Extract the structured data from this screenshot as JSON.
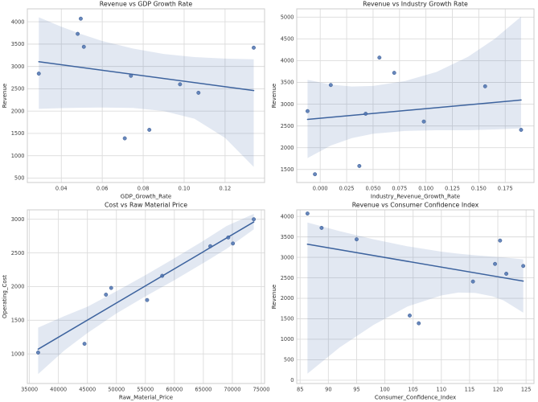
{
  "figure": {
    "background": "#ffffff",
    "style": {
      "point_color": "#4c72b0",
      "point_edge_color": "#3a5a8f",
      "line_color": "#3d639e",
      "band_color": "#4c72b0",
      "band_opacity": 0.16,
      "grid_color": "#dcdcdc",
      "spine_color": "#cccccc",
      "text_color": "#262626"
    }
  },
  "chart_data": [
    {
      "id": "revenue-vs-gdp-growth-rate",
      "type": "scatter",
      "title": "Revenue vs GDP Growth Rate",
      "xlabel": "GDP_Growth_Rate",
      "ylabel": "Revenue",
      "grid": true,
      "legend": "none",
      "xlim": [
        0.0234,
        0.1393
      ],
      "ylim": [
        400,
        4290
      ],
      "xticks": {
        "values": [
          0.04,
          0.06,
          0.08,
          0.1,
          0.12
        ],
        "labels": [
          "0.04",
          "0.06",
          "0.08",
          "0.10",
          "0.12"
        ]
      },
      "yticks": {
        "values": [
          500,
          1000,
          1500,
          2000,
          2500,
          3000,
          3500,
          4000
        ],
        "labels": [
          "500",
          "1000",
          "1500",
          "2000",
          "2500",
          "3000",
          "3500",
          "4000"
        ]
      },
      "points": [
        [
          0.029,
          2840
        ],
        [
          0.048,
          3730
        ],
        [
          0.0495,
          4070
        ],
        [
          0.051,
          3440
        ],
        [
          0.071,
          1390
        ],
        [
          0.074,
          2790
        ],
        [
          0.083,
          1580
        ],
        [
          0.098,
          2600
        ],
        [
          0.107,
          2410
        ],
        [
          0.134,
          3420
        ]
      ],
      "regression_line": {
        "x": [
          0.029,
          0.134
        ],
        "y": [
          3105,
          2460
        ]
      },
      "ci_band": {
        "x": [
          0.029,
          0.04,
          0.05,
          0.06,
          0.075,
          0.09,
          0.105,
          0.12,
          0.134
        ],
        "upper": [
          4100,
          3890,
          3720,
          3570,
          3400,
          3280,
          3210,
          3175,
          3160
        ],
        "lower": [
          2050,
          2065,
          2075,
          2080,
          2070,
          2000,
          1830,
          1400,
          750
        ]
      }
    },
    {
      "id": "revenue-vs-industry-growth-rate",
      "type": "scatter",
      "title": "Revenue vs Industry Growth Rate",
      "xlabel": "Industry_Revenue_Growth_Rate",
      "ylabel": "Revenue",
      "grid": true,
      "legend": "none",
      "xlim": [
        -0.0222,
        0.2022
      ],
      "ylim": [
        1200,
        5190
      ],
      "xticks": {
        "values": [
          0.0,
          0.025,
          0.05,
          0.075,
          0.1,
          0.125,
          0.15,
          0.175
        ],
        "labels": [
          "0.000",
          "0.025",
          "0.050",
          "0.075",
          "0.100",
          "0.125",
          "0.150",
          "0.175"
        ]
      },
      "yticks": {
        "values": [
          1500,
          2000,
          2500,
          3000,
          3500,
          4000,
          4500,
          5000
        ],
        "labels": [
          "1500",
          "2000",
          "2500",
          "3000",
          "3500",
          "4000",
          "4500",
          "5000"
        ]
      },
      "points": [
        [
          -0.012,
          2840
        ],
        [
          -0.005,
          1390
        ],
        [
          0.01,
          3440
        ],
        [
          0.037,
          1580
        ],
        [
          0.043,
          2780
        ],
        [
          0.056,
          4070
        ],
        [
          0.07,
          3720
        ],
        [
          0.098,
          2600
        ],
        [
          0.156,
          3410
        ],
        [
          0.19,
          2410
        ]
      ],
      "regression_line": {
        "x": [
          -0.012,
          0.19
        ],
        "y": [
          2650,
          3095
        ]
      },
      "ci_band": {
        "x": [
          -0.012,
          0.01,
          0.03,
          0.05,
          0.08,
          0.11,
          0.14,
          0.165,
          0.19
        ],
        "upper": [
          3560,
          3450,
          3405,
          3420,
          3530,
          3740,
          4090,
          4500,
          5010
        ],
        "lower": [
          1760,
          2050,
          2220,
          2320,
          2385,
          2400,
          2400,
          2420,
          2445
        ]
      }
    },
    {
      "id": "cost-vs-raw-material-price",
      "type": "scatter",
      "title": "Cost vs Raw Material Price",
      "xlabel": "Raw_Material_Price",
      "ylabel": "Operating_Cost",
      "grid": true,
      "legend": "none",
      "xlim": [
        34640,
        75560
      ],
      "ylim": [
        560,
        3140
      ],
      "xticks": {
        "values": [
          35000,
          40000,
          45000,
          50000,
          55000,
          60000,
          65000,
          70000,
          75000
        ],
        "labels": [
          "35000",
          "40000",
          "45000",
          "50000",
          "55000",
          "60000",
          "65000",
          "70000",
          "75000"
        ]
      },
      "yticks": {
        "values": [
          1000,
          1500,
          2000,
          2500,
          3000
        ],
        "labels": [
          "1000",
          "1500",
          "2000",
          "2500",
          "3000"
        ]
      },
      "points": [
        [
          36500,
          1020
        ],
        [
          44500,
          1150
        ],
        [
          48200,
          1880
        ],
        [
          49100,
          1980
        ],
        [
          55300,
          1800
        ],
        [
          57900,
          2160
        ],
        [
          66200,
          2600
        ],
        [
          69300,
          2730
        ],
        [
          70100,
          2640
        ],
        [
          73700,
          3000
        ]
      ],
      "regression_line": {
        "x": [
          36500,
          73700
        ],
        "y": [
          1070,
          2960
        ]
      },
      "ci_band": {
        "x": [
          36500,
          41000,
          45000,
          50000,
          55000,
          60000,
          65000,
          69000,
          73700
        ],
        "upper": [
          1390,
          1560,
          1700,
          1930,
          2170,
          2420,
          2680,
          2900,
          3080
        ],
        "lower": [
          700,
          1050,
          1310,
          1600,
          1855,
          2095,
          2350,
          2560,
          2850
        ]
      }
    },
    {
      "id": "revenue-vs-consumer-confidence-index",
      "type": "scatter",
      "title": "Revenue vs Consumer Confidence Index",
      "xlabel": "Consumer_Confidence_Index",
      "ylabel": "Revenue",
      "grid": true,
      "legend": "none",
      "xlim": [
        84.4,
        126.4
      ],
      "ylim": [
        -80,
        4160
      ],
      "xticks": {
        "values": [
          85,
          90,
          95,
          100,
          105,
          110,
          115,
          120,
          125
        ],
        "labels": [
          "85",
          "90",
          "95",
          "100",
          "105",
          "110",
          "115",
          "120",
          "125"
        ]
      },
      "yticks": {
        "values": [
          0,
          500,
          1000,
          1500,
          2000,
          2500,
          3000,
          3500,
          4000
        ],
        "labels": [
          "0",
          "500",
          "1000",
          "1500",
          "2000",
          "2500",
          "3000",
          "3500",
          "4000"
        ]
      },
      "points": [
        [
          86.3,
          4070
        ],
        [
          88.8,
          3720
        ],
        [
          95,
          3440
        ],
        [
          104.4,
          1580
        ],
        [
          106,
          1390
        ],
        [
          115.6,
          2410
        ],
        [
          119.5,
          2840
        ],
        [
          120.4,
          3410
        ],
        [
          121.5,
          2600
        ],
        [
          124.5,
          2790
        ]
      ],
      "regression_line": {
        "x": [
          86.3,
          124.5
        ],
        "y": [
          3320,
          2420
        ]
      },
      "ci_band": {
        "x": [
          86.3,
          92,
          98,
          104,
          110,
          113,
          116,
          119,
          121,
          124.5
        ],
        "upper": [
          3850,
          3640,
          3440,
          3270,
          3140,
          3090,
          3050,
          3020,
          3000,
          2950
        ],
        "lower": [
          160,
          800,
          1350,
          1800,
          2070,
          2140,
          2130,
          2050,
          1950,
          1650
        ]
      }
    }
  ]
}
